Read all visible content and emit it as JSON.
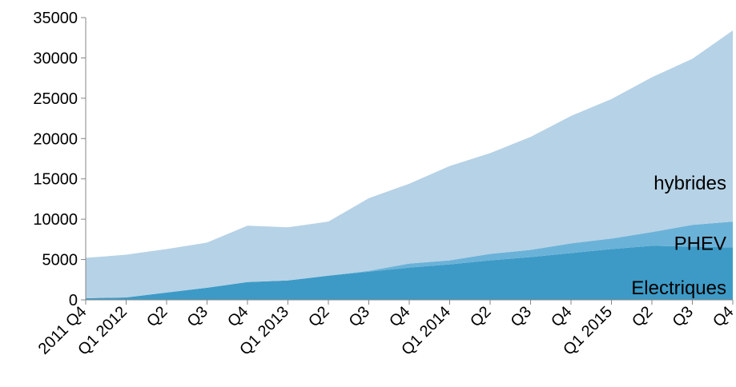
{
  "chart_data": {
    "type": "area",
    "stacked": true,
    "title": "",
    "xlabel": "",
    "ylabel": "",
    "ylim": [
      0,
      35000
    ],
    "yticks": [
      "0",
      "5000",
      "10000",
      "15000",
      "20000",
      "25000",
      "30000",
      "35000"
    ],
    "categories": [
      "2011 Q4",
      "Q1 2012",
      "Q2",
      "Q3",
      "Q4",
      "Q1 2013",
      "Q2",
      "Q3",
      "Q4",
      "Q1 2014",
      "Q2",
      "Q3",
      "Q4",
      "Q1 2015",
      "Q2",
      "Q3",
      "Q4"
    ],
    "grid": false,
    "legend": "none (series labels inside areas)",
    "series": [
      {
        "name": "Electriques",
        "color": "#3d9ac6",
        "values": [
          200,
          300,
          900,
          1500,
          2200,
          2400,
          3000,
          3500,
          4000,
          4400,
          4900,
          5300,
          5800,
          6300,
          6700,
          6600,
          6500
        ]
      },
      {
        "name": "PHEV",
        "color": "#6bb2d8",
        "values": [
          0,
          0,
          0,
          0,
          0,
          0,
          0,
          100,
          500,
          500,
          800,
          900,
          1200,
          1300,
          1700,
          2700,
          3200
        ]
      },
      {
        "name": "hybrides",
        "color": "#b6d2e6",
        "values": [
          5000,
          5300,
          5400,
          5600,
          7000,
          6600,
          6700,
          9000,
          9900,
          11700,
          12500,
          14000,
          15800,
          17300,
          19200,
          20600,
          23700
        ]
      }
    ],
    "cumulative_totals": [
      5200,
      5600,
      6300,
      7100,
      9200,
      9000,
      9700,
      12600,
      14400,
      16600,
      18200,
      20200,
      22800,
      24900,
      27600,
      29900,
      33400
    ]
  }
}
